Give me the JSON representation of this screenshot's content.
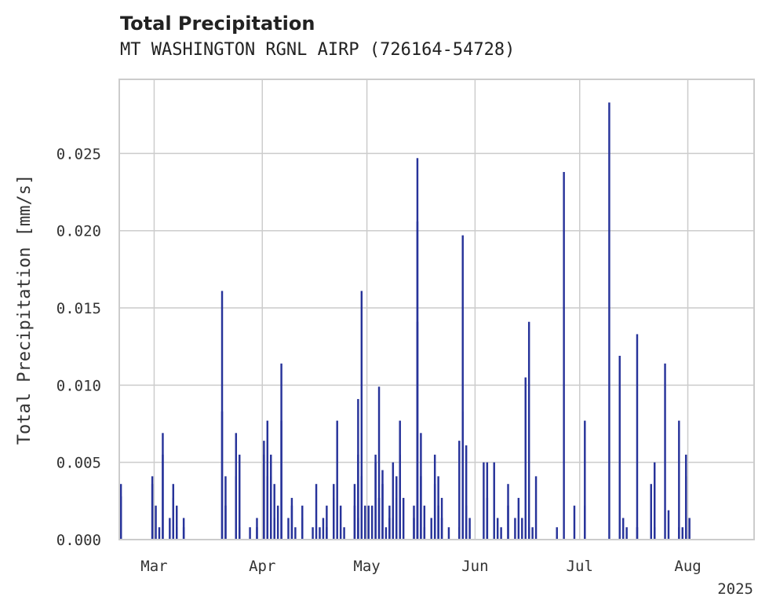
{
  "chart_data": {
    "type": "bar",
    "title": "Total Precipitation",
    "subtitle": "MT WASHINGTON RGNL AIRP (726164-54728)",
    "xlabel": "",
    "ylabel": "Total Precipitation [mm/s]",
    "year_label": "2025",
    "x_start": "2025-02-19",
    "x_end": "2025-08-20",
    "ylim": [
      0,
      0.0298
    ],
    "yticks": [
      0.0,
      0.005,
      0.01,
      0.015,
      0.02,
      0.025
    ],
    "ytick_labels": [
      "0.000",
      "0.005",
      "0.010",
      "0.015",
      "0.020",
      "0.025"
    ],
    "xticks": [
      {
        "date": "2025-03-01",
        "label": "Mar"
      },
      {
        "date": "2025-04-01",
        "label": "Apr"
      },
      {
        "date": "2025-05-01",
        "label": "May"
      },
      {
        "date": "2025-06-01",
        "label": "Jun"
      },
      {
        "date": "2025-07-01",
        "label": "Jul"
      },
      {
        "date": "2025-08-01",
        "label": "Aug"
      }
    ],
    "grid": true,
    "color": "#27339A",
    "points": [
      [
        "2025-02-19",
        0.0036
      ],
      [
        "2025-02-19",
        0.0028
      ],
      [
        "2025-02-28",
        0.0036
      ],
      [
        "2025-02-28",
        0.0041
      ],
      [
        "2025-03-01",
        0.0022
      ],
      [
        "2025-03-02",
        0.0008
      ],
      [
        "2025-03-03",
        0.0069
      ],
      [
        "2025-03-03",
        0.0055
      ],
      [
        "2025-03-05",
        0.0014
      ],
      [
        "2025-03-06",
        0.0027
      ],
      [
        "2025-03-06",
        0.0036
      ],
      [
        "2025-03-07",
        0.0022
      ],
      [
        "2025-03-07",
        0.0008
      ],
      [
        "2025-03-09",
        0.0008
      ],
      [
        "2025-03-09",
        0.0014
      ],
      [
        "2025-03-20",
        0.0161
      ],
      [
        "2025-03-20",
        0.0083
      ],
      [
        "2025-03-21",
        0.0041
      ],
      [
        "2025-03-21",
        0.0022
      ],
      [
        "2025-03-24",
        0.0041
      ],
      [
        "2025-03-24",
        0.0069
      ],
      [
        "2025-03-25",
        0.0055
      ],
      [
        "2025-03-25",
        0.0008
      ],
      [
        "2025-03-28",
        0.0008
      ],
      [
        "2025-03-30",
        0.0014
      ],
      [
        "2025-03-30",
        0.0008
      ],
      [
        "2025-04-01",
        0.0064
      ],
      [
        "2025-04-01",
        0.0055
      ],
      [
        "2025-04-02",
        0.0041
      ],
      [
        "2025-04-02",
        0.0077
      ],
      [
        "2025-04-03",
        0.0041
      ],
      [
        "2025-04-03",
        0.0055
      ],
      [
        "2025-04-04",
        0.0036
      ],
      [
        "2025-04-04",
        0.0014
      ],
      [
        "2025-04-05",
        0.0022
      ],
      [
        "2025-04-06",
        0.0114
      ],
      [
        "2025-04-06",
        0.0077
      ],
      [
        "2025-04-08",
        0.0014
      ],
      [
        "2025-04-09",
        0.0022
      ],
      [
        "2025-04-09",
        0.0027
      ],
      [
        "2025-04-10",
        0.0008
      ],
      [
        "2025-04-12",
        0.0022
      ],
      [
        "2025-04-12",
        0.0014
      ],
      [
        "2025-04-15",
        0.0008
      ],
      [
        "2025-04-16",
        0.0036
      ],
      [
        "2025-04-17",
        0.0008
      ],
      [
        "2025-04-18",
        0.0014
      ],
      [
        "2025-04-19",
        0.0022
      ],
      [
        "2025-04-19",
        0.0008
      ],
      [
        "2025-04-21",
        0.0027
      ],
      [
        "2025-04-21",
        0.0036
      ],
      [
        "2025-04-22",
        0.0077
      ],
      [
        "2025-04-23",
        0.0022
      ],
      [
        "2025-04-24",
        0.0008
      ],
      [
        "2025-04-27",
        0.0036
      ],
      [
        "2025-04-27",
        0.0022
      ],
      [
        "2025-04-28",
        0.0014
      ],
      [
        "2025-04-28",
        0.0055
      ],
      [
        "2025-04-28",
        0.0091
      ],
      [
        "2025-04-29",
        0.0161
      ],
      [
        "2025-04-29",
        0.0041
      ],
      [
        "2025-04-30",
        0.0022
      ],
      [
        "2025-05-01",
        0.0022
      ],
      [
        "2025-05-02",
        0.0022
      ],
      [
        "2025-05-03",
        0.0055
      ],
      [
        "2025-05-03",
        0.005
      ],
      [
        "2025-05-04",
        0.0027
      ],
      [
        "2025-05-04",
        0.0099
      ],
      [
        "2025-05-05",
        0.0045
      ],
      [
        "2025-05-05",
        0.0036
      ],
      [
        "2025-05-06",
        0.0008
      ],
      [
        "2025-05-07",
        0.0014
      ],
      [
        "2025-05-07",
        0.0022
      ],
      [
        "2025-05-08",
        0.005
      ],
      [
        "2025-05-08",
        0.0014
      ],
      [
        "2025-05-09",
        0.0027
      ],
      [
        "2025-05-09",
        0.0041
      ],
      [
        "2025-05-10",
        0.0055
      ],
      [
        "2025-05-10",
        0.0077
      ],
      [
        "2025-05-11",
        0.0027
      ],
      [
        "2025-05-14",
        0.0014
      ],
      [
        "2025-05-14",
        0.0022
      ],
      [
        "2025-05-15",
        0.0247
      ],
      [
        "2025-05-15",
        0.0206
      ],
      [
        "2025-05-15",
        0.0141
      ],
      [
        "2025-05-16",
        0.0069
      ],
      [
        "2025-05-16",
        0.0041
      ],
      [
        "2025-05-17",
        0.0022
      ],
      [
        "2025-05-17",
        0.0008
      ],
      [
        "2025-05-19",
        0.0014
      ],
      [
        "2025-05-20",
        0.0036
      ],
      [
        "2025-05-20",
        0.0055
      ],
      [
        "2025-05-21",
        0.0041
      ],
      [
        "2025-05-21",
        0.0022
      ],
      [
        "2025-05-22",
        0.0027
      ],
      [
        "2025-05-22",
        0.0014
      ],
      [
        "2025-05-24",
        0.0008
      ],
      [
        "2025-05-27",
        0.0064
      ],
      [
        "2025-05-27",
        0.0008
      ],
      [
        "2025-05-28",
        0.005
      ],
      [
        "2025-05-28",
        0.0083
      ],
      [
        "2025-05-28",
        0.0197
      ],
      [
        "2025-05-29",
        0.0061
      ],
      [
        "2025-05-29",
        0.0022
      ],
      [
        "2025-05-30",
        0.0014
      ],
      [
        "2025-06-03",
        0.005
      ],
      [
        "2025-06-04",
        0.005
      ],
      [
        "2025-06-04",
        0.0027
      ],
      [
        "2025-06-06",
        0.005
      ],
      [
        "2025-06-07",
        0.0014
      ],
      [
        "2025-06-08",
        0.0008
      ],
      [
        "2025-06-10",
        0.0022
      ],
      [
        "2025-06-10",
        0.0036
      ],
      [
        "2025-06-12",
        0.0014
      ],
      [
        "2025-06-13",
        0.0027
      ],
      [
        "2025-06-14",
        0.0014
      ],
      [
        "2025-06-15",
        0.0105
      ],
      [
        "2025-06-16",
        0.0141
      ],
      [
        "2025-06-16",
        0.0008
      ],
      [
        "2025-06-17",
        0.0008
      ],
      [
        "2025-06-18",
        0.0041
      ],
      [
        "2025-06-24",
        0.0008
      ],
      [
        "2025-06-26",
        0.0238
      ],
      [
        "2025-06-29",
        0.0022
      ],
      [
        "2025-07-02",
        0.0077
      ],
      [
        "2025-07-02",
        0.0022
      ],
      [
        "2025-07-09",
        0.0283
      ],
      [
        "2025-07-12",
        0.0119
      ],
      [
        "2025-07-13",
        0.0014
      ],
      [
        "2025-07-14",
        0.0008
      ],
      [
        "2025-07-17",
        0.0133
      ],
      [
        "2025-07-17",
        0.0008
      ],
      [
        "2025-07-21",
        0.0036
      ],
      [
        "2025-07-22",
        0.005
      ],
      [
        "2025-07-22",
        0.0008
      ],
      [
        "2025-07-25",
        0.0114
      ],
      [
        "2025-07-26",
        0.0019
      ],
      [
        "2025-07-29",
        0.0077
      ],
      [
        "2025-07-29",
        0.0008
      ],
      [
        "2025-07-30",
        0.0008
      ],
      [
        "2025-07-31",
        0.0041
      ],
      [
        "2025-07-31",
        0.0055
      ],
      [
        "2025-08-01",
        0.0014
      ]
    ]
  }
}
